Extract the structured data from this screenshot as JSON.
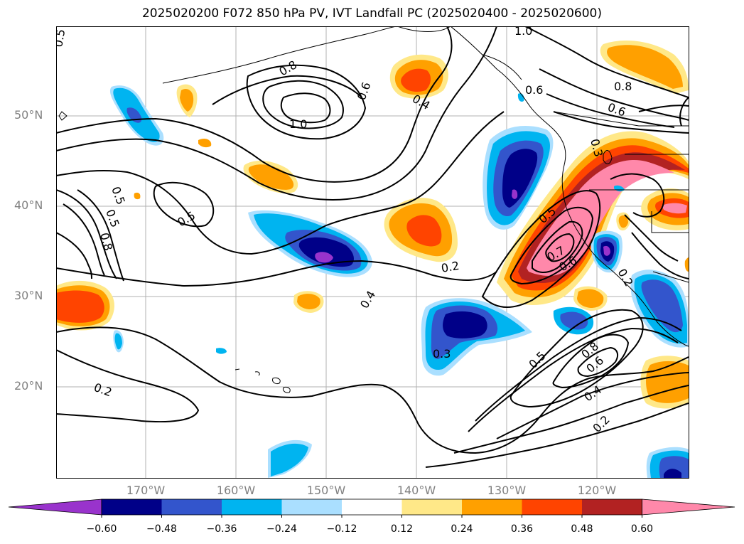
{
  "title": "2025020200 F072 850 hPa PV, IVT Landfall PC (2025020400 - 2025020600)",
  "lat_labels": [
    {
      "text": "50°N",
      "lat": 50
    },
    {
      "text": "40°N",
      "lat": 40
    },
    {
      "text": "30°N",
      "lat": 30
    },
    {
      "text": "20°N",
      "lat": 20
    }
  ],
  "lon_labels": [
    {
      "text": "170°W",
      "lon": -170
    },
    {
      "text": "160°W",
      "lon": -160
    },
    {
      "text": "150°W",
      "lon": -150
    },
    {
      "text": "140°W",
      "lon": -140
    },
    {
      "text": "130°W",
      "lon": -130
    },
    {
      "text": "120°W",
      "lon": -120
    }
  ],
  "colorbar": {
    "ticks": [
      "−0.60",
      "−0.48",
      "−0.36",
      "−0.24",
      "−0.12",
      "0.12",
      "0.24",
      "0.36",
      "0.48",
      "0.60"
    ],
    "colors": [
      "#9933cc",
      "#000088",
      "#3355cc",
      "#00b4f0",
      "#aadfff",
      "#ffffff",
      "#ffe888",
      "#ffa000",
      "#ff4400",
      "#b22222",
      "#ff88aa"
    ]
  },
  "contour_labels": [
    "0.5",
    "0.8",
    "1.0",
    "0.6",
    "0.4",
    "0.5",
    "0.5",
    "0.8",
    "0.5",
    "0.2",
    "0.4",
    "0.3",
    "0.5",
    "0.7",
    "0.6",
    "0.2",
    "0.8",
    "0.6",
    "0.5",
    "0.4",
    "0.2",
    "1.0",
    "0.6",
    "0.8",
    "0.6",
    "0.3",
    "0.2"
  ]
}
